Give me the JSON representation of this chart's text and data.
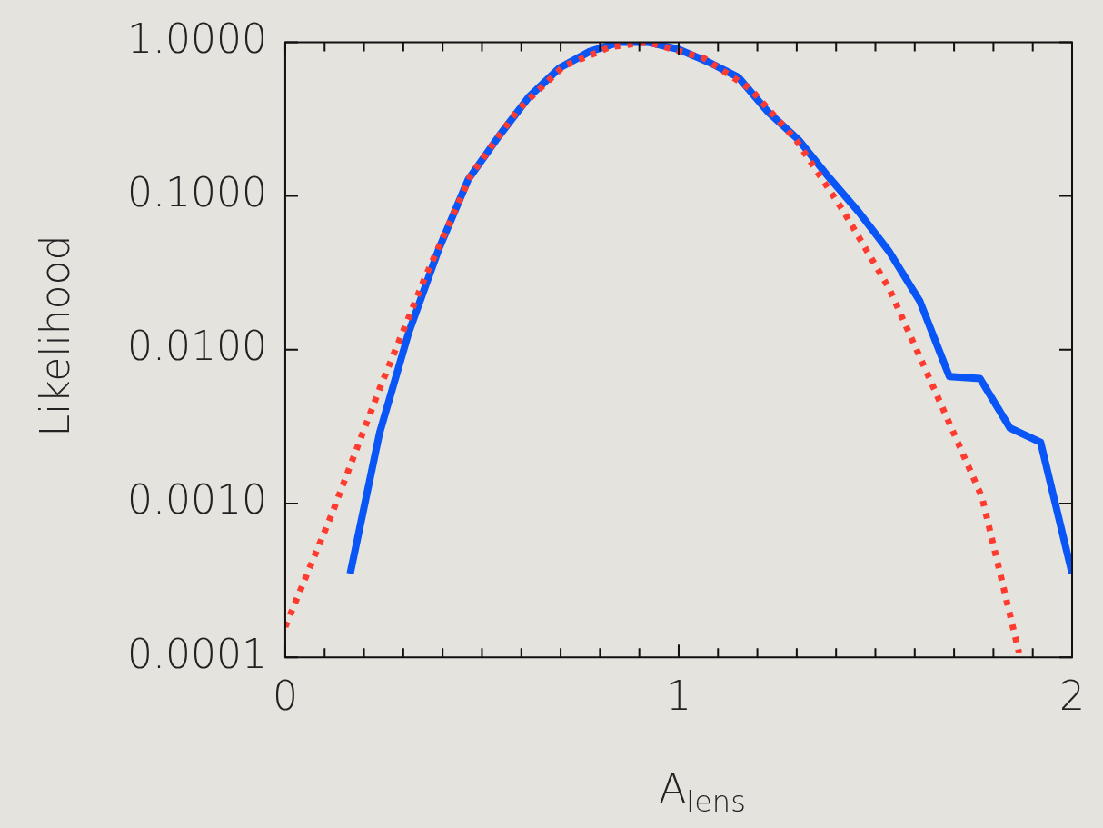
{
  "chart_data": {
    "type": "line",
    "xlabel": "A$_{lens}$",
    "ylabel": "Likelihood",
    "log": "y",
    "grid": false,
    "legend": false,
    "marker": "none",
    "xlim": [
      0,
      2
    ],
    "xticks": [
      0,
      {
        "value": 0.1,
        "label": null
      },
      {
        "value": 0.2,
        "label": null
      },
      {
        "value": 0.3,
        "label": null
      },
      {
        "value": 0.4,
        "label": null
      },
      {
        "value": 0.5,
        "label": null
      },
      {
        "value": 0.6,
        "label": null
      },
      {
        "value": 0.7,
        "label": null
      },
      {
        "value": 0.8,
        "label": null
      },
      {
        "value": 0.9,
        "label": null
      },
      1,
      {
        "value": 1.1,
        "label": null
      },
      {
        "value": 1.2,
        "label": null
      },
      {
        "value": 1.3,
        "label": null
      },
      {
        "value": 1.4,
        "label": null
      },
      {
        "value": 1.5,
        "label": null
      },
      {
        "value": 1.6,
        "label": null
      },
      {
        "value": 1.7,
        "label": null
      },
      {
        "value": 1.8,
        "label": null
      },
      {
        "value": 1.9,
        "label": null
      },
      2
    ],
    "ylim": [
      0.0001,
      1
    ],
    "yticks": [
      {
        "value": 0.0001,
        "label": "0.0001"
      },
      {
        "value": 0.001,
        "label": "0.0010"
      },
      {
        "value": 0.01,
        "label": "0.0100"
      },
      {
        "value": 0.1,
        "label": "0.1000"
      },
      {
        "value": 1,
        "label": "1.0000"
      }
    ],
    "series": [
      {
        "color": "#0a55f5",
        "line_style": "solid",
        "x": [
          0.165,
          0.24,
          0.314,
          0.39,
          0.465,
          0.543,
          0.619,
          0.697,
          0.774,
          0.85,
          0.921,
          0.999,
          1.077,
          1.152,
          1.228,
          1.306,
          1.381,
          1.457,
          1.535,
          1.613,
          1.688,
          1.766,
          1.842,
          1.92,
          2.0
        ],
        "values": [
          0.00035,
          0.0029,
          0.013,
          0.045,
          0.128,
          0.245,
          0.44,
          0.68,
          0.87,
          1.0,
          1.0,
          0.9,
          0.74,
          0.59,
          0.35,
          0.23,
          0.133,
          0.079,
          0.0435,
          0.0207,
          0.0067,
          0.0065,
          0.0031,
          0.0025,
          0.00035
        ]
      },
      {
        "color": "#ff3b2f",
        "line_style": "dotted",
        "x": [
          0,
          0.118,
          0.24,
          0.354,
          0.472,
          0.59,
          0.708,
          0.826,
          0.921,
          1.063,
          1.181,
          1.299,
          1.417,
          1.535,
          1.653,
          1.771,
          1.865
        ],
        "values": [
          0.000158,
          0.00085,
          0.0056,
          0.029,
          0.137,
          0.36,
          0.7,
          0.93,
          1.0,
          0.79,
          0.5,
          0.23,
          0.081,
          0.025,
          0.0053,
          0.0011,
          0.000107
        ]
      }
    ]
  }
}
